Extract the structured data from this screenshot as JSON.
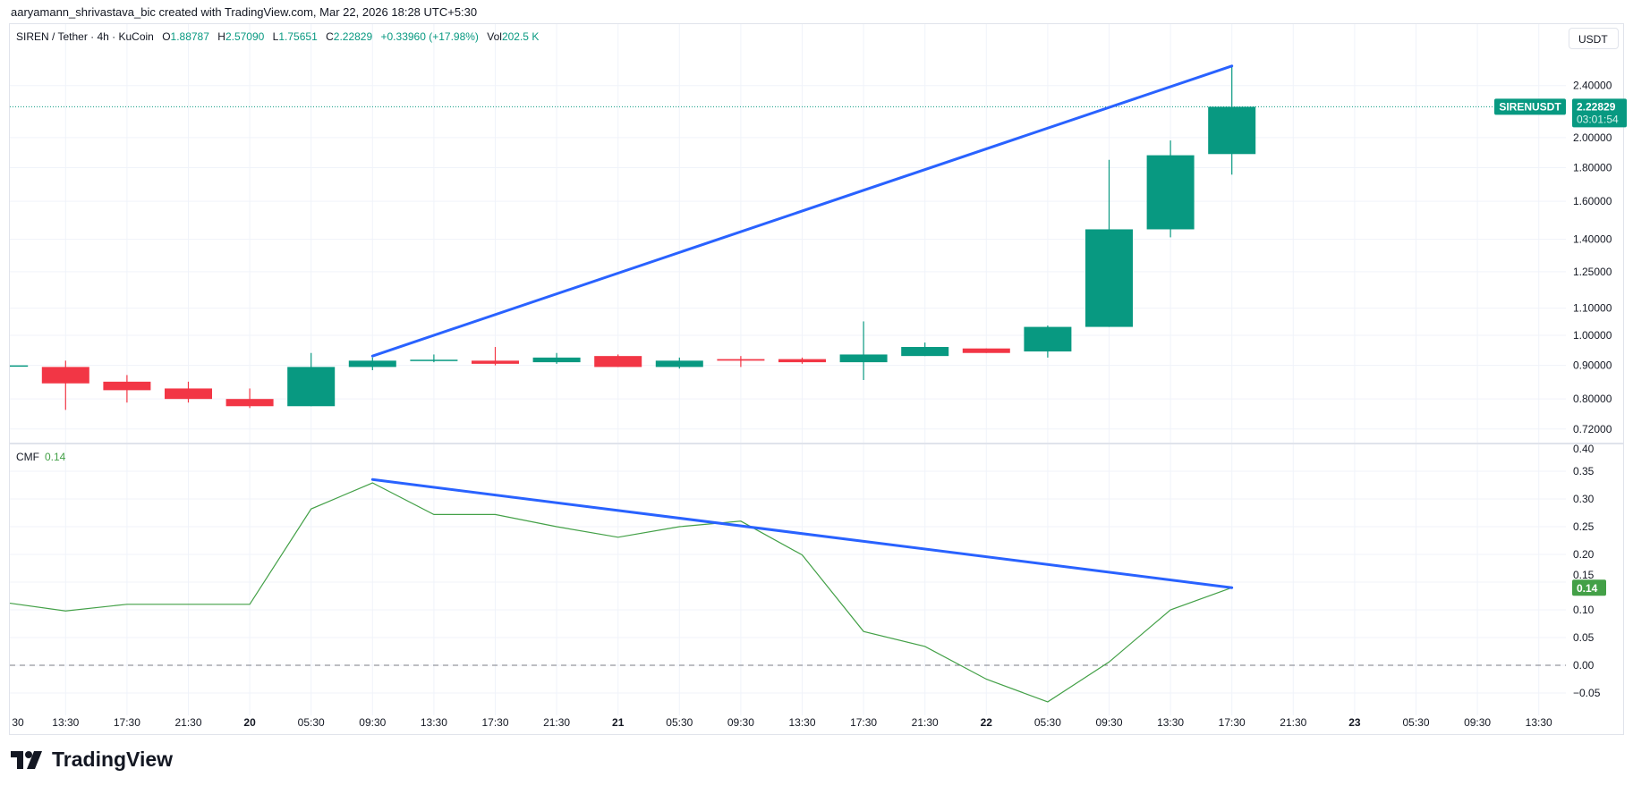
{
  "credit": "aaryamann_shrivastava_bic created with TradingView.com, Mar 22, 2026 18:28 UTC+5:30",
  "legend": {
    "symbol": "SIREN / Tether · 4h · KuCoin",
    "o_label": "O",
    "o": "1.88787",
    "h_label": "H",
    "h": "2.57090",
    "l_label": "L",
    "l": "1.75651",
    "c_label": "C",
    "c": "2.22829",
    "change": "+0.33960 (+17.98%)",
    "vol_label": "Vol",
    "vol": "202.5 K"
  },
  "currency_button": "USDT",
  "price_tag": {
    "symbol": "SIRENUSDT",
    "price": "2.22829",
    "countdown": "03:01:54"
  },
  "cmf": {
    "label": "CMF",
    "value": "0.14",
    "tag": "0.14"
  },
  "logo_text": "TradingView",
  "colors": {
    "up": "#089981",
    "down": "#f23645",
    "trend": "#2962ff",
    "cmf": "#43a047",
    "grid": "#f0f3fa"
  },
  "chart_data": {
    "type": "candlestick",
    "title": "SIREN / Tether · 4h · KuCoin",
    "price_ticks": [
      "2.40000",
      "2.00000",
      "1.80000",
      "1.60000",
      "1.40000",
      "1.25000",
      "1.10000",
      "1.00000",
      "0.90000",
      "0.80000",
      "0.72000"
    ],
    "cmf_ticks": [
      "0.40",
      "0.35",
      "0.30",
      "0.25",
      "0.20",
      "0.15",
      "0.10",
      "0.05",
      "0.00",
      "−0.05"
    ],
    "time_labels": [
      "30",
      "13:30",
      "17:30",
      "21:30",
      "20",
      "05:30",
      "09:30",
      "13:30",
      "17:30",
      "21:30",
      "21",
      "05:30",
      "09:30",
      "13:30",
      "17:30",
      "21:30",
      "22",
      "05:30",
      "09:30",
      "13:30",
      "17:30",
      "21:30",
      "23",
      "05:30",
      "09:30",
      "13:30"
    ],
    "day_labels": [
      "20",
      "21",
      "22",
      "23"
    ],
    "candles": [
      {
        "o": 0.9,
        "h": 0.905,
        "l": 0.895,
        "c": 0.9
      },
      {
        "o": 0.895,
        "h": 0.915,
        "l": 0.77,
        "c": 0.845
      },
      {
        "o": 0.85,
        "h": 0.87,
        "l": 0.79,
        "c": 0.825
      },
      {
        "o": 0.83,
        "h": 0.85,
        "l": 0.79,
        "c": 0.8
      },
      {
        "o": 0.8,
        "h": 0.83,
        "l": 0.775,
        "c": 0.78
      },
      {
        "o": 0.78,
        "h": 0.94,
        "l": 0.78,
        "c": 0.895
      },
      {
        "o": 0.895,
        "h": 0.925,
        "l": 0.885,
        "c": 0.915
      },
      {
        "o": 0.915,
        "h": 0.935,
        "l": 0.91,
        "c": 0.918
      },
      {
        "o": 0.915,
        "h": 0.96,
        "l": 0.9,
        "c": 0.905
      },
      {
        "o": 0.91,
        "h": 0.94,
        "l": 0.905,
        "c": 0.925
      },
      {
        "o": 0.93,
        "h": 0.935,
        "l": 0.895,
        "c": 0.895
      },
      {
        "o": 0.895,
        "h": 0.925,
        "l": 0.89,
        "c": 0.915
      },
      {
        "o": 0.92,
        "h": 0.93,
        "l": 0.895,
        "c": 0.915
      },
      {
        "o": 0.92,
        "h": 0.925,
        "l": 0.905,
        "c": 0.91
      },
      {
        "o": 0.91,
        "h": 1.05,
        "l": 0.855,
        "c": 0.935
      },
      {
        "o": 0.93,
        "h": 0.975,
        "l": 0.93,
        "c": 0.96
      },
      {
        "o": 0.955,
        "h": 0.955,
        "l": 0.94,
        "c": 0.94
      },
      {
        "o": 0.945,
        "h": 1.035,
        "l": 0.925,
        "c": 1.03
      },
      {
        "o": 1.03,
        "h": 1.85,
        "l": 1.03,
        "c": 1.45
      },
      {
        "o": 1.45,
        "h": 1.98,
        "l": 1.41,
        "c": 1.88
      },
      {
        "o": 1.88787,
        "h": 2.5709,
        "l": 1.75651,
        "c": 2.22829
      }
    ],
    "cmf_values": [
      0.112,
      0.098,
      0.11,
      0.11,
      0.11,
      0.282,
      0.329,
      0.272,
      0.272,
      0.25,
      0.231,
      0.25,
      0.26,
      0.199,
      0.061,
      0.034,
      -0.025,
      -0.066,
      0.006,
      0.1,
      0.14
    ],
    "last_price": 2.22829,
    "price_trendline": {
      "from_bar": 6,
      "from_price": 0.93,
      "to_bar": 20,
      "to_price": 2.5709
    },
    "cmf_trendline": {
      "from_bar": 6,
      "from_value": 0.335,
      "to_bar": 20,
      "to_value": 0.14
    },
    "price_scale": "log",
    "cmf_range": [
      -0.08,
      0.4
    ]
  }
}
